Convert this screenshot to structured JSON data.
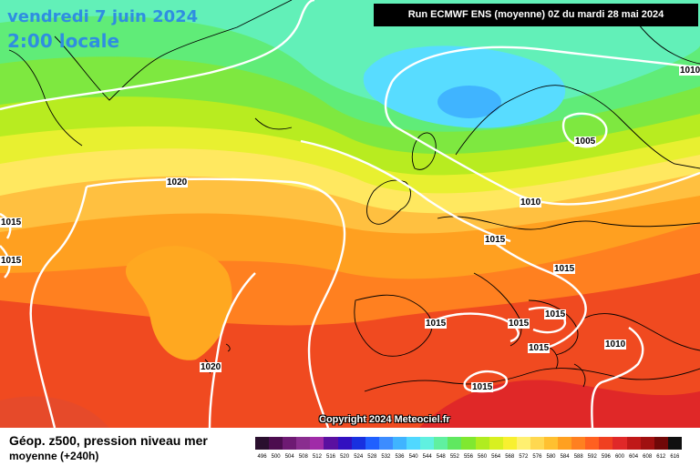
{
  "header": {
    "date": "vendredi 7 juin 2024",
    "time": "2:00 locale",
    "run": "Run ECMWF ENS (moyenne) 0Z du mardi 28 mai 2024"
  },
  "copyright": "Copyright 2024 Meteociel.fr",
  "footer": {
    "title": "Géop. z500, pression niveau mer",
    "subtitle": "moyenne  (+240h)"
  },
  "isobars": [
    {
      "label": "1020"
    },
    {
      "label": "1015"
    },
    {
      "label": "1015"
    },
    {
      "label": "1020"
    },
    {
      "label": "1010"
    },
    {
      "label": "1005"
    },
    {
      "label": "1010"
    },
    {
      "label": "1015"
    },
    {
      "label": "1015"
    },
    {
      "label": "1015"
    },
    {
      "label": "1015"
    },
    {
      "label": "1015"
    },
    {
      "label": "1015"
    },
    {
      "label": "1010"
    },
    {
      "label": "1015"
    }
  ],
  "legend": {
    "values": [
      "496",
      "500",
      "504",
      "508",
      "512",
      "516",
      "520",
      "524",
      "528",
      "532",
      "536",
      "540",
      "544",
      "548",
      "552",
      "556",
      "560",
      "564",
      "568",
      "572",
      "576",
      "580",
      "584",
      "588",
      "592",
      "596",
      "600",
      "604",
      "608",
      "612",
      "616"
    ],
    "colors": [
      "#2a0f2e",
      "#4c0d4f",
      "#6e1a73",
      "#8a2d8f",
      "#a02ba8",
      "#5a10a0",
      "#3210c0",
      "#1830e0",
      "#2060ff",
      "#3c8cff",
      "#40b4ff",
      "#50d8ff",
      "#60f0e0",
      "#60f0a0",
      "#60e860",
      "#80e830",
      "#b0ec20",
      "#d8f020",
      "#f8f030",
      "#fff070",
      "#ffd850",
      "#ffc030",
      "#ffa020",
      "#ff8020",
      "#ff6020",
      "#f04020",
      "#e02828",
      "#c01818",
      "#a01010",
      "#700808",
      "#101010"
    ]
  }
}
